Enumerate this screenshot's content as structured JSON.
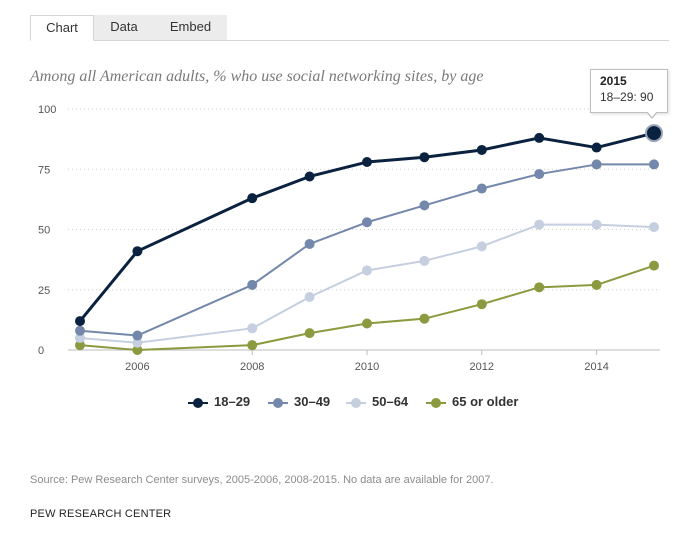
{
  "tabs": [
    {
      "label": "Chart",
      "active": true
    },
    {
      "label": "Data",
      "active": false
    },
    {
      "label": "Embed",
      "active": false
    }
  ],
  "subtitle": "Among all American adults, % who use social networking sites, by age",
  "tooltip": {
    "year": "2015",
    "series_label": "18–29",
    "value": "90"
  },
  "source": "Source: Pew Research Center surveys, 2005-2006, 2008-2015. No data are available for 2007.",
  "organization": "PEW RESEARCH CENTER",
  "chart_data": {
    "type": "line",
    "title": "Among all American adults, % who use social networking sites, by age",
    "xlabel": "",
    "ylabel": "",
    "xlim": [
      2005,
      2015
    ],
    "ylim": [
      0,
      100
    ],
    "x_ticks": [
      2006,
      2008,
      2010,
      2012,
      2014
    ],
    "y_ticks": [
      0,
      25,
      50,
      75,
      100
    ],
    "grid": "horizontal dotted",
    "legend_position": "bottom-center",
    "series": [
      {
        "name": "18–29",
        "color": "#0a2240",
        "points": [
          [
            2005,
            12
          ],
          [
            2006,
            41
          ],
          [
            2008,
            63
          ],
          [
            2009,
            72
          ],
          [
            2010,
            78
          ],
          [
            2011,
            80
          ],
          [
            2012,
            83
          ],
          [
            2013,
            88
          ],
          [
            2014,
            84
          ],
          [
            2015,
            90
          ]
        ]
      },
      {
        "name": "30–49",
        "color": "#7488ab",
        "points": [
          [
            2005,
            8
          ],
          [
            2006,
            6
          ],
          [
            2008,
            27
          ],
          [
            2009,
            44
          ],
          [
            2010,
            53
          ],
          [
            2011,
            60
          ],
          [
            2012,
            67
          ],
          [
            2013,
            73
          ],
          [
            2014,
            77
          ],
          [
            2015,
            77
          ]
        ]
      },
      {
        "name": "50–64",
        "color": "#c5cfe0",
        "points": [
          [
            2005,
            5
          ],
          [
            2006,
            3
          ],
          [
            2008,
            9
          ],
          [
            2009,
            22
          ],
          [
            2010,
            33
          ],
          [
            2011,
            37
          ],
          [
            2012,
            43
          ],
          [
            2013,
            52
          ],
          [
            2014,
            52
          ],
          [
            2015,
            51
          ]
        ]
      },
      {
        "name": "65 or older",
        "color": "#8b9a3e",
        "points": [
          [
            2005,
            2
          ],
          [
            2006,
            0
          ],
          [
            2008,
            2
          ],
          [
            2009,
            7
          ],
          [
            2010,
            11
          ],
          [
            2011,
            13
          ],
          [
            2012,
            19
          ],
          [
            2013,
            26
          ],
          [
            2014,
            27
          ],
          [
            2015,
            35
          ]
        ]
      }
    ]
  }
}
